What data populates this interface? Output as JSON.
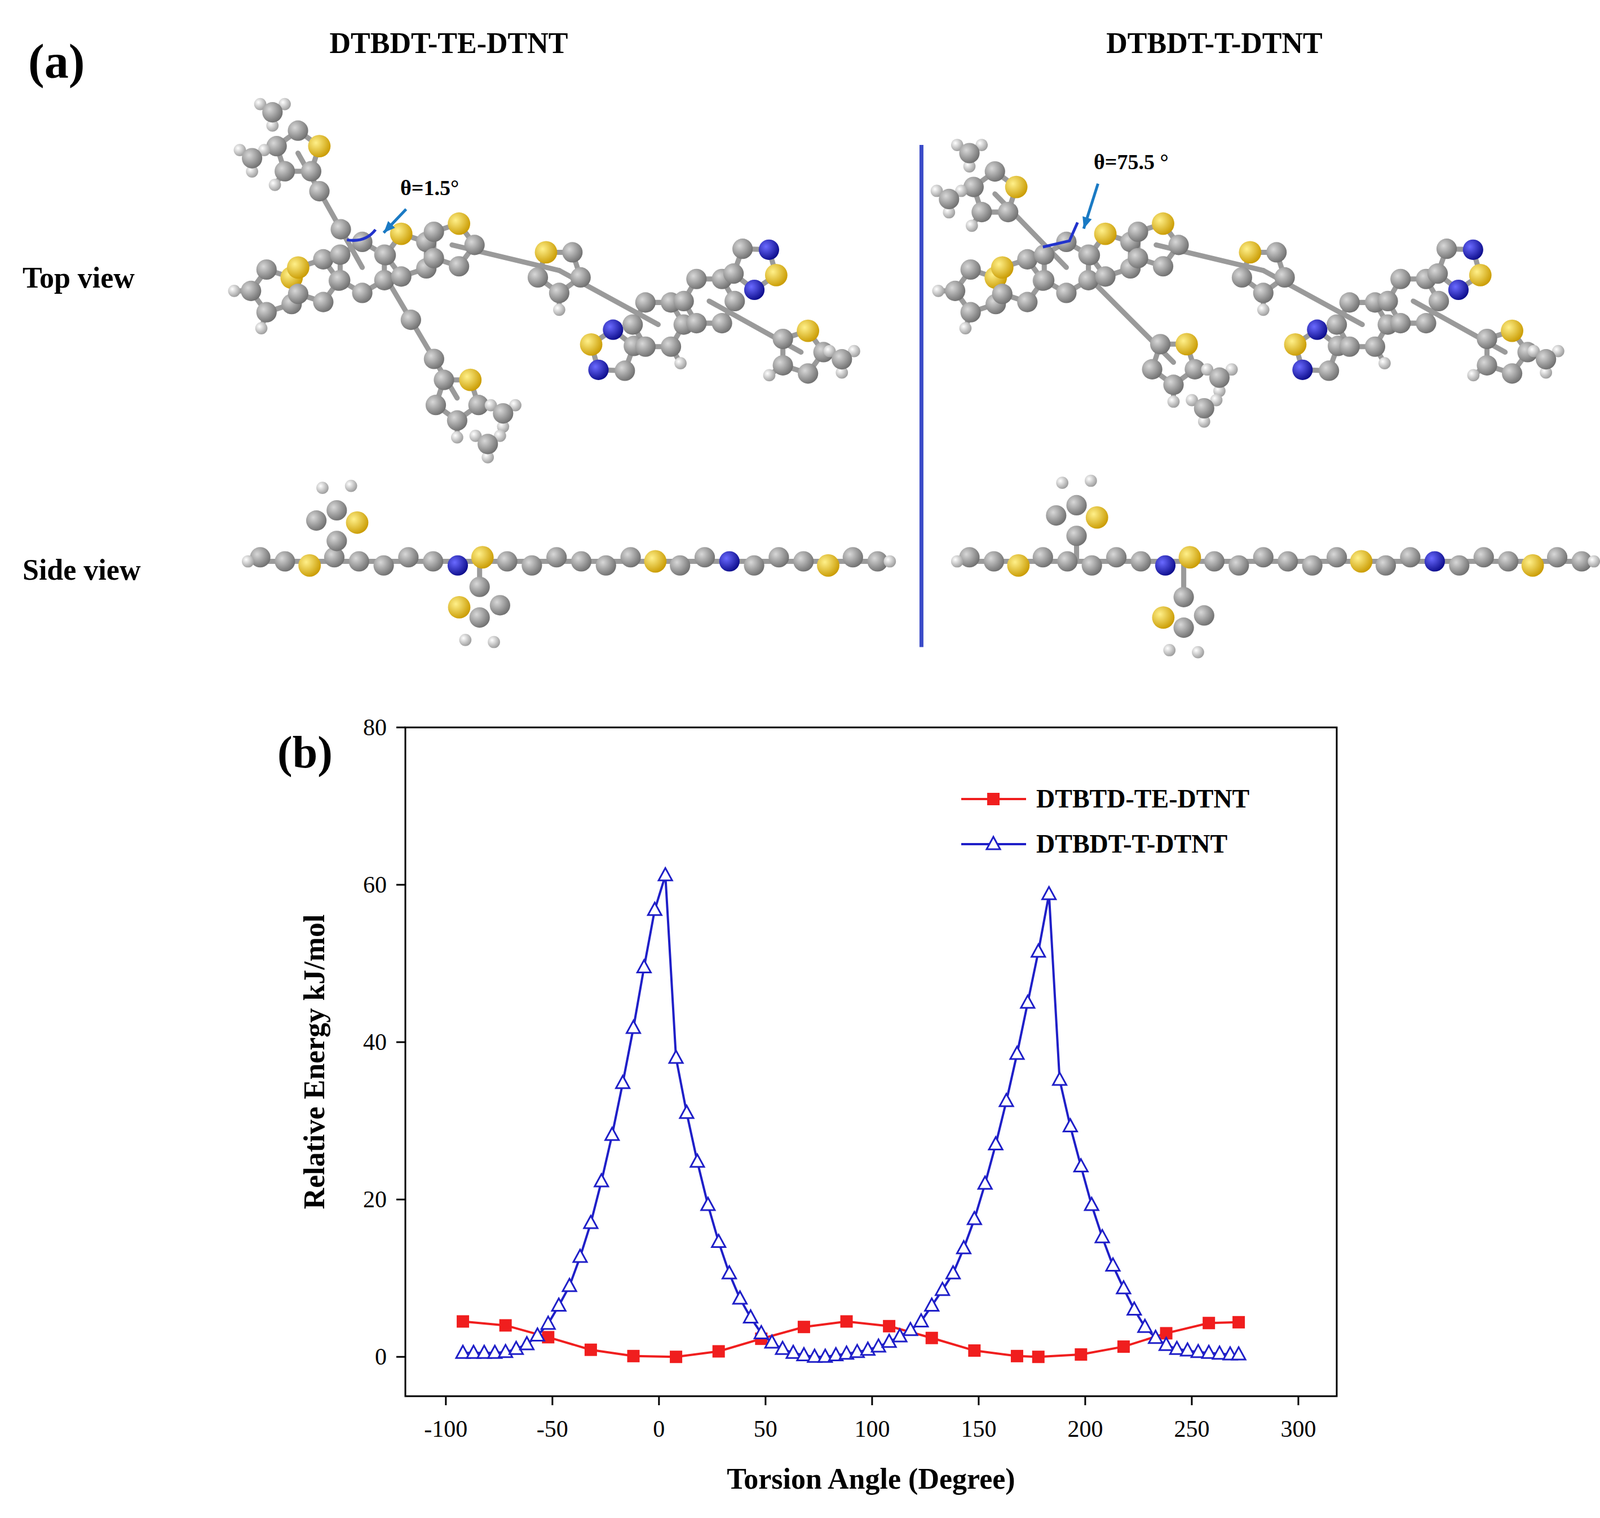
{
  "figure_a": {
    "panel_label": "(a)",
    "molecules": [
      {
        "name": "DTBDT-TE-DTNT",
        "angle_label": "θ=1.5°"
      },
      {
        "name": "DTBDT-T-DTNT",
        "angle_label": "θ=75.5 °"
      }
    ],
    "views": [
      "Top view",
      "Side view"
    ]
  },
  "chart_data": {
    "type": "line",
    "panel_label": "(b)",
    "x_label": "Torsion Angle (Degree)",
    "y_label": "Relative Energy kJ/mol",
    "xlim": [
      -119,
      318
    ],
    "ylim": [
      -5,
      80
    ],
    "xticks": [
      -100,
      -50,
      0,
      50,
      100,
      150,
      200,
      250,
      300
    ],
    "yticks": [
      0,
      20,
      40,
      60,
      80
    ],
    "legend": "upper right",
    "series": [
      {
        "name": "DTBTD-TE-DTNT",
        "color": "#f01e1e",
        "marker": "square",
        "line_style": "solid",
        "x": [
          -92,
          -72,
          -52,
          -32,
          -12,
          8,
          28,
          48,
          68,
          88,
          108,
          128,
          148,
          168,
          178,
          198,
          218,
          238,
          258,
          272
        ],
        "values": [
          4.5,
          4.0,
          2.5,
          0.9,
          0.1,
          0.0,
          0.7,
          2.3,
          3.8,
          4.5,
          3.9,
          2.4,
          0.8,
          0.1,
          0.0,
          0.3,
          1.3,
          3.0,
          4.3,
          4.4
        ]
      },
      {
        "name": "DTBDT-T-DTNT",
        "color": "#1f1fc8",
        "marker": "triangle",
        "line_style": "solid",
        "x": [
          -92,
          -87,
          -82,
          -77,
          -72,
          -67,
          -62,
          -57,
          -52,
          -47,
          -42,
          -37,
          -32,
          -27,
          -22,
          -17,
          -12,
          -7,
          -2,
          3,
          8,
          13,
          18,
          23,
          28,
          33,
          38,
          43,
          48,
          53,
          58,
          63,
          68,
          73,
          78,
          83,
          88,
          93,
          98,
          103,
          108,
          113,
          118,
          123,
          128,
          133,
          138,
          143,
          148,
          153,
          158,
          163,
          168,
          173,
          178,
          183,
          188,
          193,
          198,
          203,
          208,
          213,
          218,
          223,
          228,
          233,
          238,
          243,
          248,
          253,
          258,
          263,
          268,
          272
        ],
        "values": [
          0.5,
          0.5,
          0.5,
          0.5,
          0.6,
          1.0,
          1.6,
          2.7,
          4.2,
          6.5,
          9.0,
          12.7,
          17.0,
          22.3,
          28.2,
          34.8,
          41.8,
          49.5,
          56.8,
          61.2,
          38.0,
          31.0,
          24.8,
          19.3,
          14.6,
          10.6,
          7.4,
          5.0,
          3.0,
          1.8,
          1.0,
          0.5,
          0.2,
          0.0,
          0.0,
          0.2,
          0.4,
          0.6,
          0.9,
          1.3,
          1.9,
          2.6,
          3.4,
          4.5,
          6.5,
          8.5,
          10.6,
          13.8,
          17.5,
          22.0,
          27.0,
          32.5,
          38.5,
          45.0,
          51.5,
          58.8,
          35.2,
          29.3,
          24.2,
          19.3,
          15.2,
          11.6,
          8.7,
          6.0,
          3.8,
          2.4,
          1.5,
          1.0,
          0.8,
          0.6,
          0.5,
          0.4,
          0.3,
          0.3
        ]
      }
    ]
  }
}
